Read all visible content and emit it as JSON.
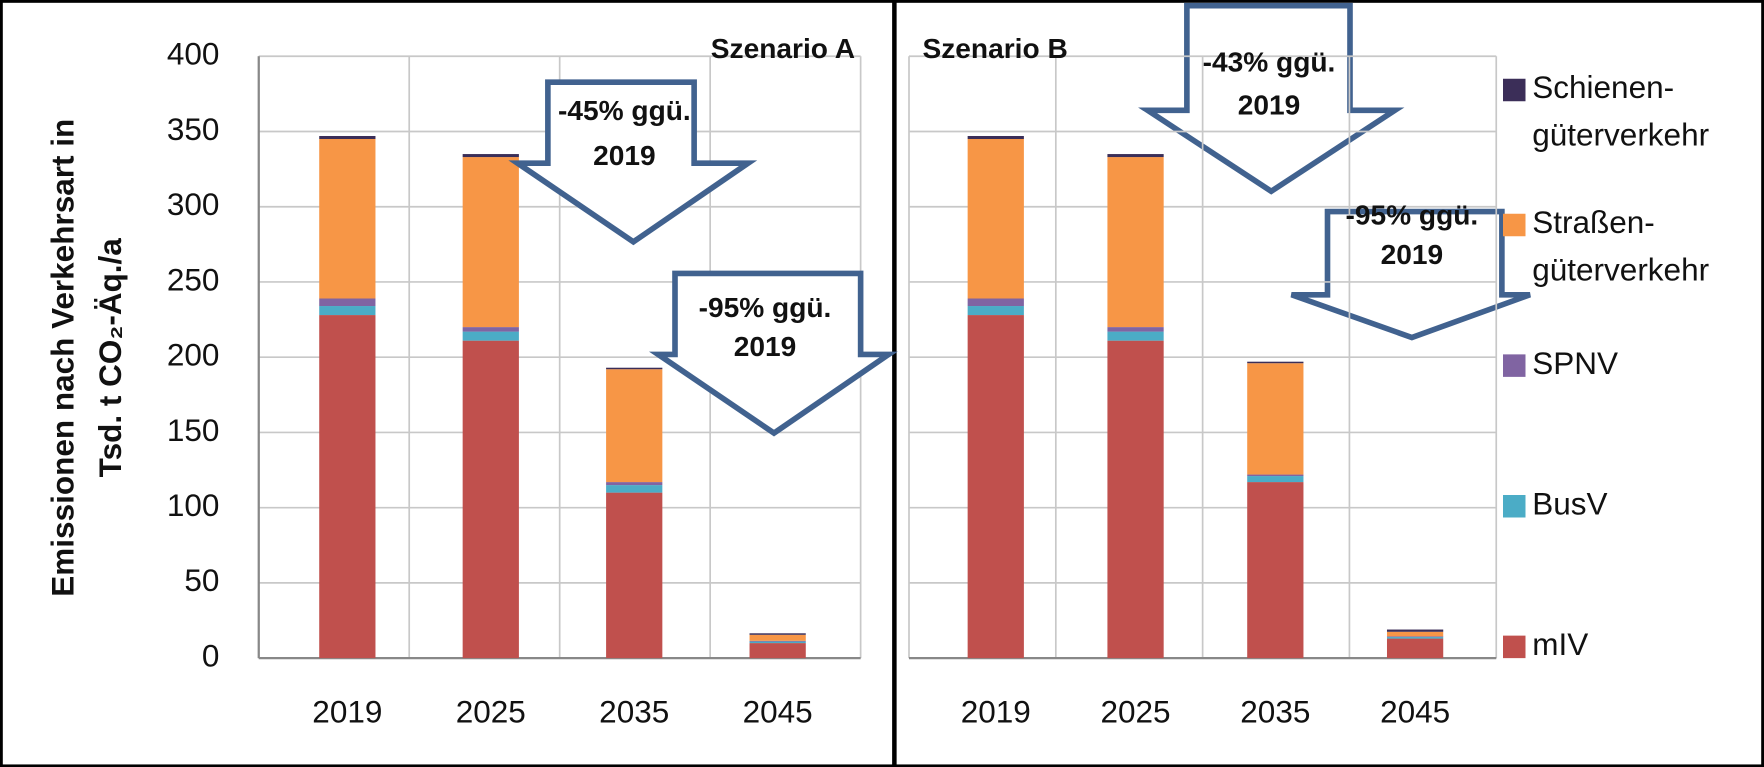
{
  "chart_data": [
    {
      "type": "bar",
      "stacked": true,
      "title": "Szenario A",
      "ylabel": [
        "Emissionen nach Verkehrsart in",
        "Tsd. t CO₂-Äq./a"
      ],
      "categories": [
        "2019",
        "2025",
        "2035",
        "2045"
      ],
      "series": [
        {
          "name": "mIV",
          "color": "#c0504d",
          "values": [
            228,
            211,
            110,
            10
          ]
        },
        {
          "name": "BusV",
          "color": "#4bacc6",
          "values": [
            6,
            6,
            5,
            1
          ]
        },
        {
          "name": "SPNV",
          "color": "#8064a2",
          "values": [
            5,
            3,
            2,
            0.5
          ]
        },
        {
          "name": "Straßen-güterverkehr",
          "color": "#f79646",
          "values": [
            106,
            113,
            75,
            4
          ]
        },
        {
          "name": "Schienen-güterverkehr",
          "color": "#3b2e58",
          "values": [
            2,
            2,
            1,
            1
          ]
        }
      ],
      "ylim": [
        0,
        400
      ],
      "yticks": [
        0,
        50,
        100,
        150,
        200,
        250,
        300,
        350,
        400
      ],
      "grid": true,
      "annotations": [
        {
          "text": [
            "-45% ggü.",
            "2019"
          ]
        },
        {
          "text": [
            "-95% ggü.",
            "2019"
          ]
        }
      ]
    },
    {
      "type": "bar",
      "stacked": true,
      "title": "Szenario B",
      "categories": [
        "2019",
        "2025",
        "2035",
        "2045"
      ],
      "series": [
        {
          "name": "mIV",
          "color": "#c0504d",
          "values": [
            228,
            211,
            117,
            13
          ]
        },
        {
          "name": "BusV",
          "color": "#4bacc6",
          "values": [
            6,
            6,
            4,
            1
          ]
        },
        {
          "name": "SPNV",
          "color": "#8064a2",
          "values": [
            5,
            3,
            1,
            0.5
          ]
        },
        {
          "name": "Straßen-güterverkehr",
          "color": "#f79646",
          "values": [
            106,
            113,
            74,
            3
          ]
        },
        {
          "name": "Schienen-güterverkehr",
          "color": "#3b2e58",
          "values": [
            2,
            2,
            1,
            1.5
          ]
        }
      ],
      "ylim": [
        0,
        400
      ],
      "grid": true,
      "legend": "right",
      "annotations": [
        {
          "text": [
            "-43% ggü.",
            "2019"
          ]
        },
        {
          "text": [
            "-95% ggü.",
            "2019"
          ]
        }
      ]
    }
  ]
}
